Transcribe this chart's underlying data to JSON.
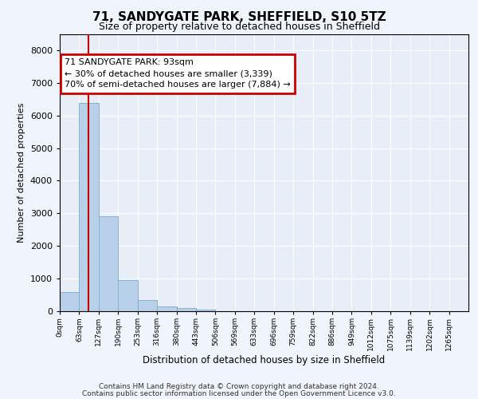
{
  "title1": "71, SANDYGATE PARK, SHEFFIELD, S10 5TZ",
  "title2": "Size of property relative to detached houses in Sheffield",
  "xlabel": "Distribution of detached houses by size in Sheffield",
  "ylabel": "Number of detached properties",
  "categories": [
    "0sqm",
    "63sqm",
    "127sqm",
    "190sqm",
    "253sqm",
    "316sqm",
    "380sqm",
    "443sqm",
    "506sqm",
    "569sqm",
    "633sqm",
    "696sqm",
    "759sqm",
    "822sqm",
    "886sqm",
    "949sqm",
    "1012sqm",
    "1075sqm",
    "1139sqm",
    "1202sqm",
    "1265sqm"
  ],
  "bar_values": [
    580,
    6380,
    2900,
    960,
    350,
    155,
    95,
    60,
    0,
    0,
    0,
    0,
    0,
    0,
    0,
    0,
    0,
    0,
    0,
    0,
    0
  ],
  "bar_color": "#b8d0e8",
  "bar_edge_color": "#7aaad0",
  "ylim": [
    0,
    8500
  ],
  "yticks": [
    0,
    1000,
    2000,
    3000,
    4000,
    5000,
    6000,
    7000,
    8000
  ],
  "red_line_x": 1.47,
  "annotation_text": "71 SANDYGATE PARK: 93sqm\n← 30% of detached houses are smaller (3,339)\n70% of semi-detached houses are larger (7,884) →",
  "annotation_bbox_color": "#cc0000",
  "footer1": "Contains HM Land Registry data © Crown copyright and database right 2024.",
  "footer2": "Contains public sector information licensed under the Open Government Licence v3.0.",
  "bg_color": "#f0f4fc",
  "plot_bg_color": "#e8eef8"
}
